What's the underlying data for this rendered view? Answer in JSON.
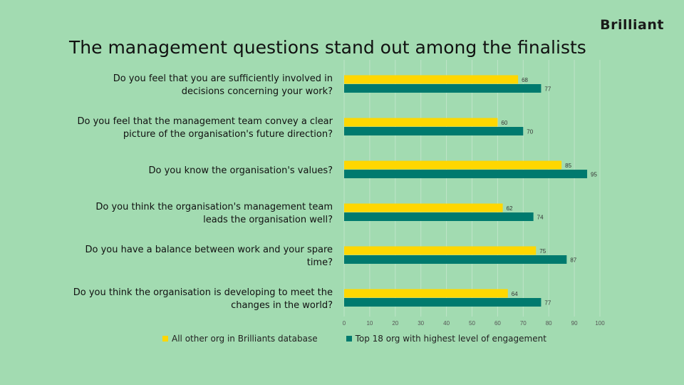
{
  "brand": {
    "logo_text": "Brilliant"
  },
  "title": "The management questions stand out among the finalists",
  "colors": {
    "background": "#a2dbb1",
    "series1": "#ffd700",
    "series2": "#007a6e",
    "grid": "#bfe4c8"
  },
  "chart_data": {
    "type": "bar",
    "orientation": "horizontal",
    "title": "The management questions stand out among the finalists",
    "categories": [
      [
        "Do you feel that you are sufficiently involved in",
        "decisions concerning your work?"
      ],
      [
        "Do you feel that the management team convey a clear",
        "picture of the organisation's future direction?"
      ],
      [
        "Do you know the organisation's values?"
      ],
      [
        "Do you think the organisation's management team",
        "leads the organisation well?"
      ],
      [
        "Do you have a balance between work and your spare",
        "time?"
      ],
      [
        "Do you think the organisation is developing to meet the",
        "changes in the world?"
      ]
    ],
    "series": [
      {
        "name": "All other org in Brilliants database",
        "color": "#ffd700",
        "values": [
          68,
          60,
          85,
          62,
          75,
          64
        ]
      },
      {
        "name": "Top 18 org with highest level of engagement",
        "color": "#007a6e",
        "values": [
          77,
          70,
          95,
          74,
          87,
          77
        ]
      }
    ],
    "xlim": [
      0,
      100
    ],
    "xticks": [
      0,
      10,
      20,
      30,
      40,
      50,
      60,
      70,
      80,
      90,
      100
    ],
    "grid": true,
    "legend_position": "bottom"
  }
}
